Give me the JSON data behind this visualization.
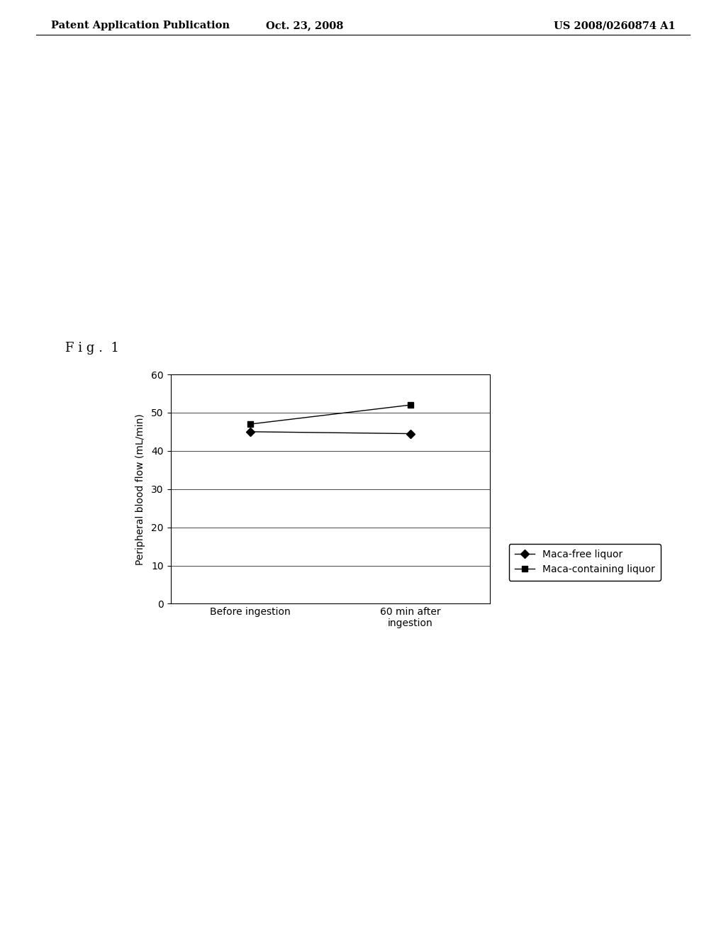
{
  "header_left": "Patent Application Publication",
  "header_center": "Oct. 23, 2008",
  "header_right": "US 2008/0260874 A1",
  "fig_label": "F i g .  1",
  "x_labels": [
    "Before ingestion",
    "60 min after\ningestion"
  ],
  "x_positions": [
    0,
    1
  ],
  "series1_name": "Maca-free liquor",
  "series1_values": [
    45.0,
    44.5
  ],
  "series1_color": "#000000",
  "series1_marker": "D",
  "series2_name": "Maca-containing liquor",
  "series2_values": [
    47.0,
    52.0
  ],
  "series2_color": "#000000",
  "series2_marker": "s",
  "ylabel": "Peripheral blood flow (mL/min)",
  "ylim": [
    0,
    60
  ],
  "yticks": [
    0,
    10,
    20,
    30,
    40,
    50,
    60
  ],
  "background_color": "#ffffff",
  "plot_bg": "#ffffff",
  "header_fontsize": 10.5,
  "fig_label_fontsize": 13,
  "axis_fontsize": 10,
  "tick_fontsize": 10,
  "legend_fontsize": 10
}
